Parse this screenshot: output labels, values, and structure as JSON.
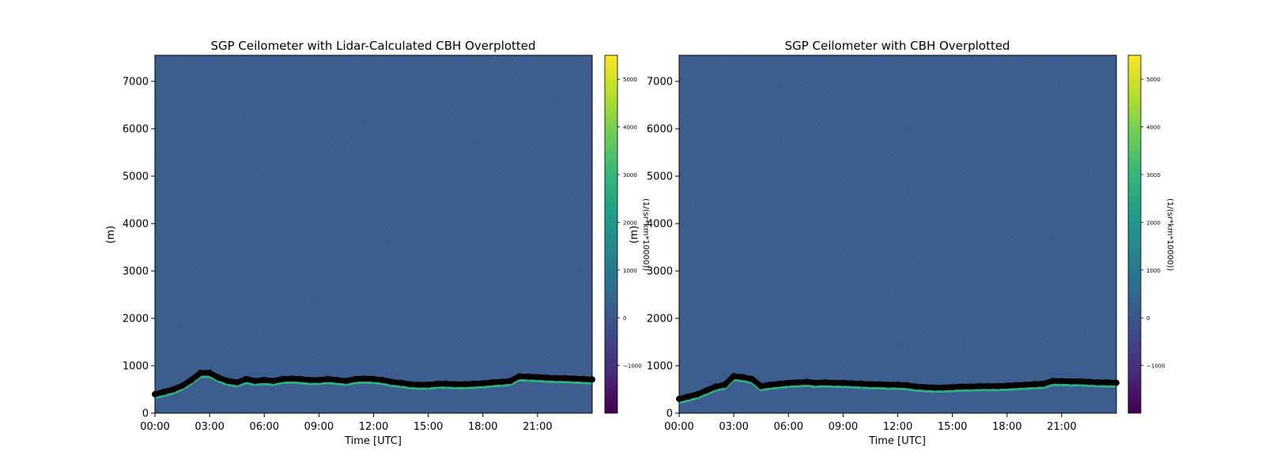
{
  "colors": {
    "background_field": "#3a5b8d",
    "cbh_marker": "#000000",
    "cloud_edge": "#2ec27e",
    "viridis": [
      "#440154",
      "#482878",
      "#3e4a89",
      "#31688e",
      "#26828e",
      "#1f9e89",
      "#35b779",
      "#6ece58",
      "#b5de2b",
      "#fde725"
    ]
  },
  "chart_data": [
    {
      "type": "heatmap",
      "title": "SGP Ceilometer with Lidar-Calculated CBH Overplotted",
      "xlabel": "Time [UTC]",
      "ylabel": "(m)",
      "xlim": [
        "00:00",
        "24:00"
      ],
      "ylim": [
        0,
        7550
      ],
      "xticks": [
        "00:00",
        "03:00",
        "06:00",
        "09:00",
        "12:00",
        "15:00",
        "18:00",
        "21:00"
      ],
      "yticks": [
        "0",
        "1000",
        "2000",
        "3000",
        "4000",
        "5000",
        "6000",
        "7000"
      ],
      "grid": false,
      "colorbar": {
        "label": "(1/(sr*km*10000))",
        "range": [
          -2000,
          5500
        ],
        "ticks": [
          "−1000",
          "0",
          "1000",
          "2000",
          "3000",
          "4000",
          "5000"
        ]
      },
      "cbh_series": {
        "x": [
          "00:00",
          "00:30",
          "01:00",
          "01:30",
          "02:00",
          "02:30",
          "03:00",
          "03:30",
          "04:00",
          "04:30",
          "05:00",
          "05:30",
          "06:00",
          "06:30",
          "07:00",
          "07:30",
          "08:00",
          "08:30",
          "09:00",
          "09:30",
          "10:00",
          "10:30",
          "11:00",
          "11:30",
          "12:00",
          "12:30",
          "13:00",
          "13:30",
          "14:00",
          "14:30",
          "15:00",
          "15:30",
          "16:00",
          "16:30",
          "17:00",
          "17:30",
          "18:00",
          "18:30",
          "19:00",
          "19:30",
          "20:00",
          "20:30",
          "21:00",
          "21:30",
          "22:00",
          "22:30",
          "23:00",
          "23:30",
          "24:00"
        ],
        "y": [
          400,
          450,
          500,
          580,
          700,
          850,
          850,
          750,
          680,
          650,
          720,
          680,
          700,
          680,
          720,
          730,
          720,
          700,
          700,
          720,
          700,
          680,
          720,
          730,
          720,
          700,
          660,
          640,
          610,
          600,
          600,
          620,
          620,
          610,
          610,
          620,
          630,
          650,
          660,
          680,
          780,
          770,
          760,
          750,
          740,
          740,
          730,
          720,
          710
        ]
      }
    },
    {
      "type": "heatmap",
      "title": "SGP Ceilometer with CBH Overplotted",
      "xlabel": "Time [UTC]",
      "ylabel": "(m)",
      "xlim": [
        "00:00",
        "24:00"
      ],
      "ylim": [
        0,
        7550
      ],
      "xticks": [
        "00:00",
        "03:00",
        "06:00",
        "09:00",
        "12:00",
        "15:00",
        "18:00",
        "21:00"
      ],
      "yticks": [
        "0",
        "1000",
        "2000",
        "3000",
        "4000",
        "5000",
        "6000",
        "7000"
      ],
      "grid": false,
      "colorbar": {
        "label": "(1/(sr*km*10000))",
        "range": [
          -2000,
          5500
        ],
        "ticks": [
          "−1000",
          "0",
          "1000",
          "2000",
          "3000",
          "4000",
          "5000"
        ]
      },
      "cbh_series": {
        "x": [
          "00:00",
          "00:30",
          "01:00",
          "01:30",
          "02:00",
          "02:30",
          "03:00",
          "03:30",
          "04:00",
          "04:30",
          "05:00",
          "05:30",
          "06:00",
          "06:30",
          "07:00",
          "07:30",
          "08:00",
          "08:30",
          "09:00",
          "09:30",
          "10:00",
          "10:30",
          "11:00",
          "11:30",
          "12:00",
          "12:30",
          "13:00",
          "13:30",
          "14:00",
          "14:30",
          "15:00",
          "15:30",
          "16:00",
          "16:30",
          "17:00",
          "17:30",
          "18:00",
          "18:30",
          "19:00",
          "19:30",
          "20:00",
          "20:30",
          "21:00",
          "21:30",
          "22:00",
          "22:30",
          "23:00",
          "23:30",
          "24:00"
        ],
        "y": [
          300,
          350,
          400,
          480,
          560,
          600,
          780,
          760,
          720,
          570,
          600,
          620,
          640,
          650,
          660,
          640,
          650,
          640,
          640,
          630,
          620,
          610,
          610,
          600,
          600,
          590,
          560,
          550,
          540,
          540,
          550,
          560,
          560,
          570,
          570,
          570,
          580,
          590,
          600,
          610,
          620,
          680,
          680,
          670,
          670,
          660,
          650,
          650,
          640
        ]
      }
    }
  ]
}
